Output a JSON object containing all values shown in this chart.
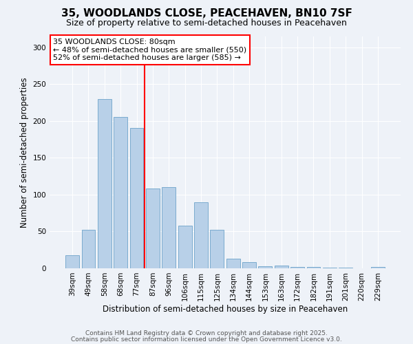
{
  "title": "35, WOODLANDS CLOSE, PEACEHAVEN, BN10 7SF",
  "subtitle": "Size of property relative to semi-detached houses in Peacehaven",
  "xlabel": "Distribution of semi-detached houses by size in Peacehaven",
  "ylabel": "Number of semi-detached properties",
  "categories": [
    "39sqm",
    "49sqm",
    "58sqm",
    "68sqm",
    "77sqm",
    "87sqm",
    "96sqm",
    "106sqm",
    "115sqm",
    "125sqm",
    "134sqm",
    "144sqm",
    "153sqm",
    "163sqm",
    "172sqm",
    "182sqm",
    "191sqm",
    "201sqm",
    "220sqm",
    "229sqm"
  ],
  "values": [
    18,
    52,
    230,
    205,
    190,
    108,
    110,
    58,
    90,
    52,
    13,
    8,
    3,
    4,
    2,
    2,
    1,
    1,
    0,
    2
  ],
  "bar_color": "#b8d0e8",
  "bar_edge_color": "#7aabcf",
  "ylim": [
    0,
    315
  ],
  "yticks": [
    0,
    50,
    100,
    150,
    200,
    250,
    300
  ],
  "vline_x_index": 4,
  "vline_color": "red",
  "annotation_title": "35 WOODLANDS CLOSE: 80sqm",
  "annotation_line1": "← 48% of semi-detached houses are smaller (550)",
  "annotation_line2": "52% of semi-detached houses are larger (585) →",
  "annotation_box_color": "white",
  "annotation_box_edge_color": "red",
  "footer1": "Contains HM Land Registry data © Crown copyright and database right 2025.",
  "footer2": "Contains public sector information licensed under the Open Government Licence v3.0.",
  "background_color": "#eef2f8",
  "plot_bg_color": "#eef2f8",
  "title_fontsize": 11,
  "subtitle_fontsize": 9,
  "axis_label_fontsize": 8.5,
  "tick_fontsize": 7.5,
  "annotation_fontsize": 8,
  "footer_fontsize": 6.5
}
